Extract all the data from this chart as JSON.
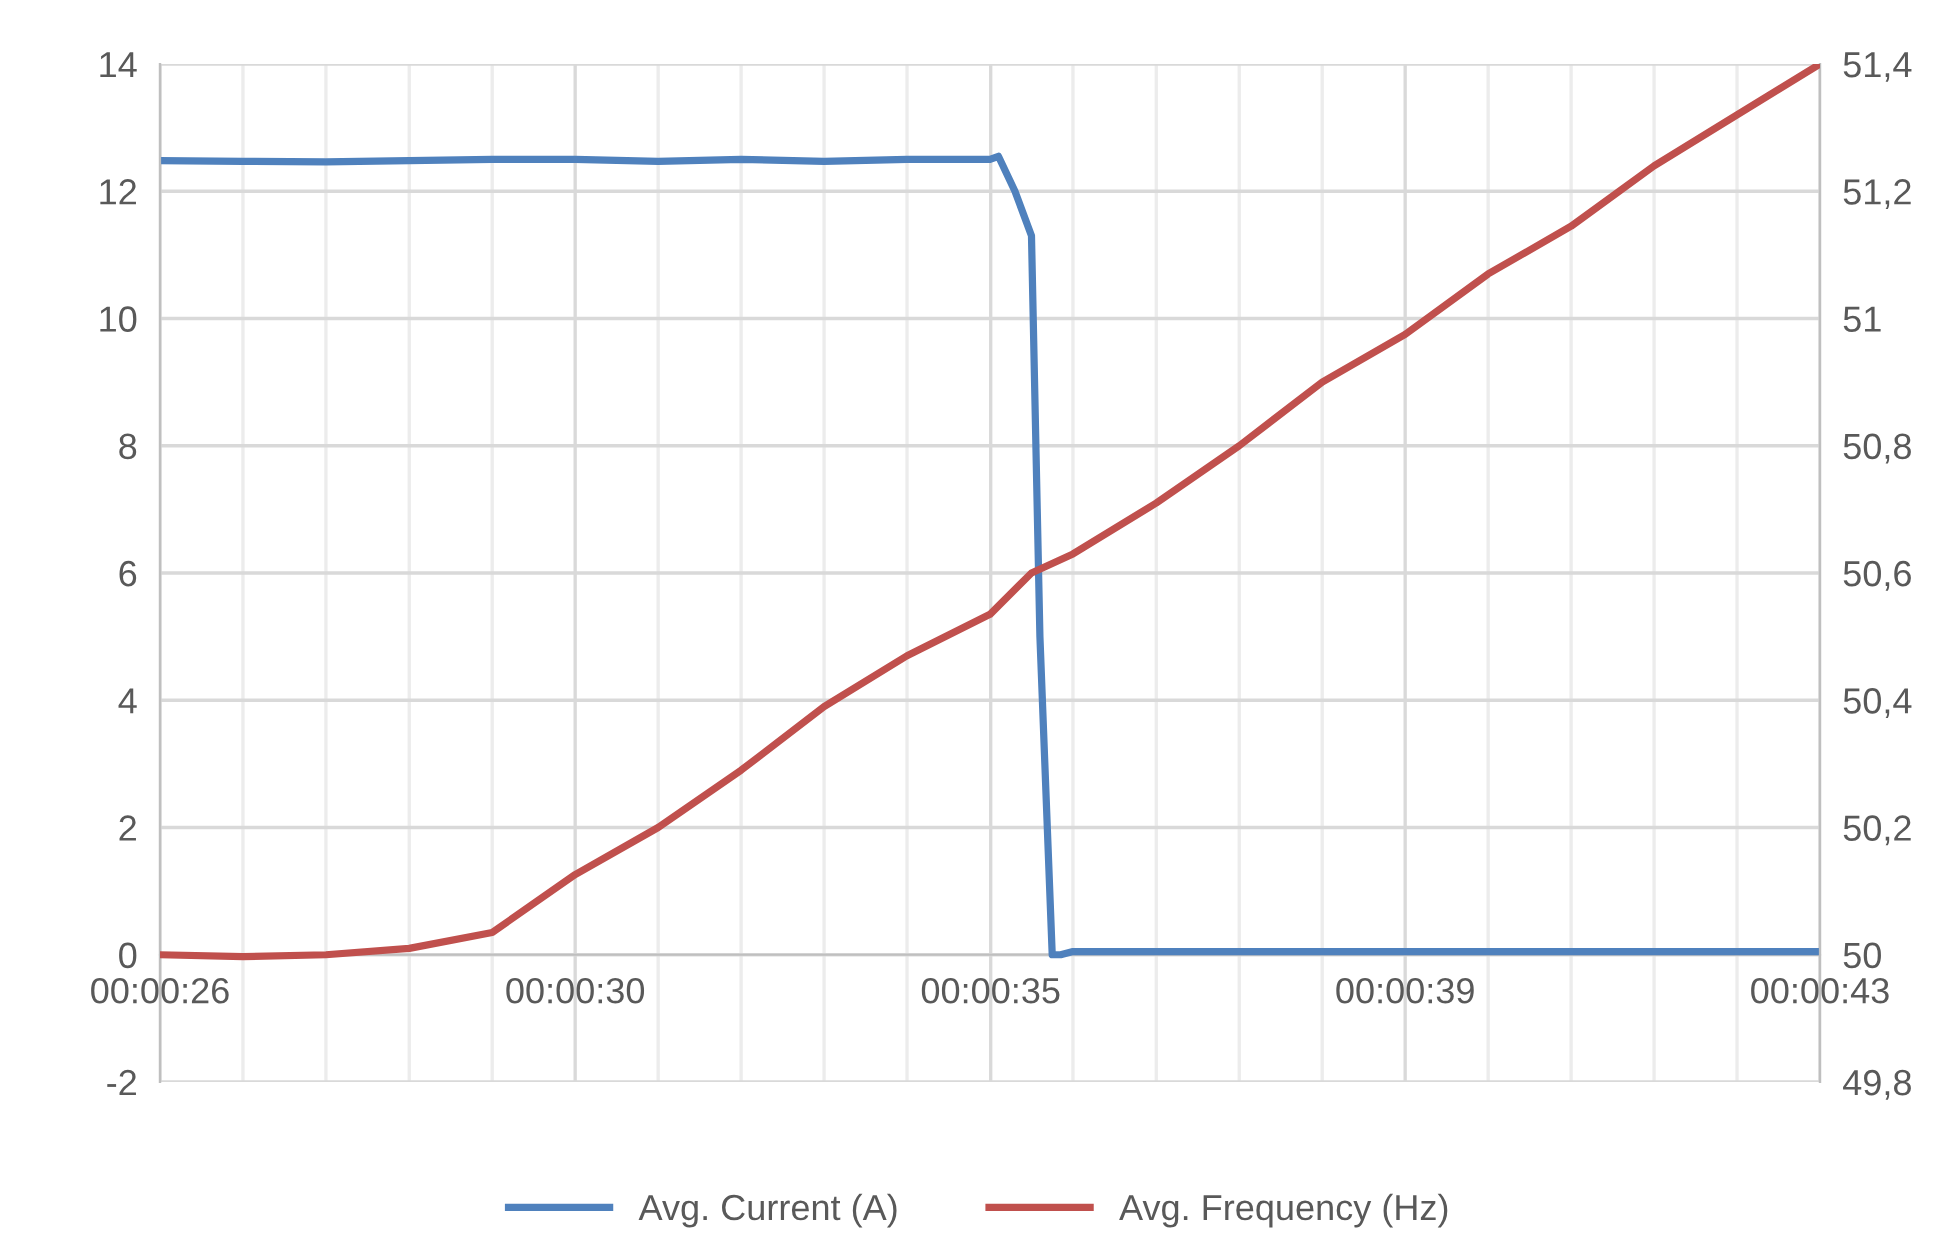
{
  "chart_data": {
    "type": "line",
    "xlim": [
      0.007222,
      0.011944
    ],
    "xticks": [
      {
        "value": 0.007222,
        "label": "00:00:26"
      },
      {
        "value": 0.007458,
        "label": null
      },
      {
        "value": 0.007694,
        "label": null
      },
      {
        "value": 0.007931,
        "label": null
      },
      {
        "value": 0.008167,
        "label": null
      },
      {
        "value": 0.008403,
        "label": "00:00:30"
      },
      {
        "value": 0.008639,
        "label": null
      },
      {
        "value": 0.008875,
        "label": null
      },
      {
        "value": 0.009111,
        "label": null
      },
      {
        "value": 0.009347,
        "label": null
      },
      {
        "value": 0.009585,
        "label": "00:00:35"
      },
      {
        "value": 0.009819,
        "label": null
      },
      {
        "value": 0.010056,
        "label": null
      },
      {
        "value": 0.010292,
        "label": null
      },
      {
        "value": 0.010528,
        "label": null
      },
      {
        "value": 0.010764,
        "label": "00:00:39"
      },
      {
        "value": 0.011,
        "label": null
      },
      {
        "value": 0.011236,
        "label": null
      },
      {
        "value": 0.011472,
        "label": null
      },
      {
        "value": 0.011708,
        "label": null
      },
      {
        "value": 0.011944,
        "label": "00:00:43"
      }
    ],
    "ylim": [
      -2,
      14
    ],
    "yticks": [
      -2,
      0,
      2,
      4,
      6,
      8,
      10,
      12,
      14
    ],
    "y2lim": [
      49.8,
      51.4
    ],
    "y2ticks": [
      {
        "value": 49.8,
        "label": "49,8"
      },
      {
        "value": 50,
        "label": "50"
      },
      {
        "value": 50.2,
        "label": "50,2"
      },
      {
        "value": 50.4,
        "label": "50,4"
      },
      {
        "value": 50.6,
        "label": "50,6"
      },
      {
        "value": 50.8,
        "label": "50,8"
      },
      {
        "value": 51,
        "label": "51"
      },
      {
        "value": 51.2,
        "label": "51,2"
      },
      {
        "value": 51.4,
        "label": "51,4"
      }
    ],
    "grid": true,
    "legend": "bottom",
    "line_style": "solid",
    "marker": "none",
    "series": [
      {
        "name": "Avg. Current (A)",
        "color": "#4f81bd",
        "x": [
          0.007222,
          0.007458,
          0.007694,
          0.007931,
          0.008167,
          0.008403,
          0.008639,
          0.008875,
          0.009111,
          0.009347,
          0.009583,
          0.009607,
          0.009654,
          0.009701,
          0.009725,
          0.00976,
          0.009784,
          0.009819,
          0.010056,
          0.010292,
          0.010528,
          0.010764,
          0.011,
          0.011236,
          0.011472,
          0.011708,
          0.011944
        ],
        "values": [
          12.48,
          12.47,
          12.46,
          12.48,
          12.5,
          12.5,
          12.47,
          12.5,
          12.47,
          12.5,
          12.5,
          12.55,
          12.0,
          11.3,
          5,
          0,
          0,
          0.05,
          0.05,
          0.05,
          0.05,
          0.05,
          0.05,
          0.05,
          0.05,
          0.05,
          0.05
        ]
      },
      {
        "name": "Avg. Frequency (Hz)",
        "color": "#c0504d",
        "axis": "y2",
        "x": [
          0.007222,
          0.007458,
          0.007694,
          0.007931,
          0.008167,
          0.008403,
          0.008639,
          0.008875,
          0.009111,
          0.009347,
          0.009583,
          0.009701,
          0.009819,
          0.010056,
          0.010292,
          0.010528,
          0.010764,
          0.011,
          0.011236,
          0.011472,
          0.011708,
          0.011944
        ],
        "values": [
          50.0,
          49.997,
          50.0,
          50.01,
          50.035,
          50.126,
          50.2,
          50.29,
          50.39,
          50.47,
          50.535,
          50.6,
          50.63,
          50.71,
          50.8,
          50.9,
          50.975,
          51.07,
          51.145,
          51.24,
          51.32,
          51.4
        ]
      }
    ]
  }
}
